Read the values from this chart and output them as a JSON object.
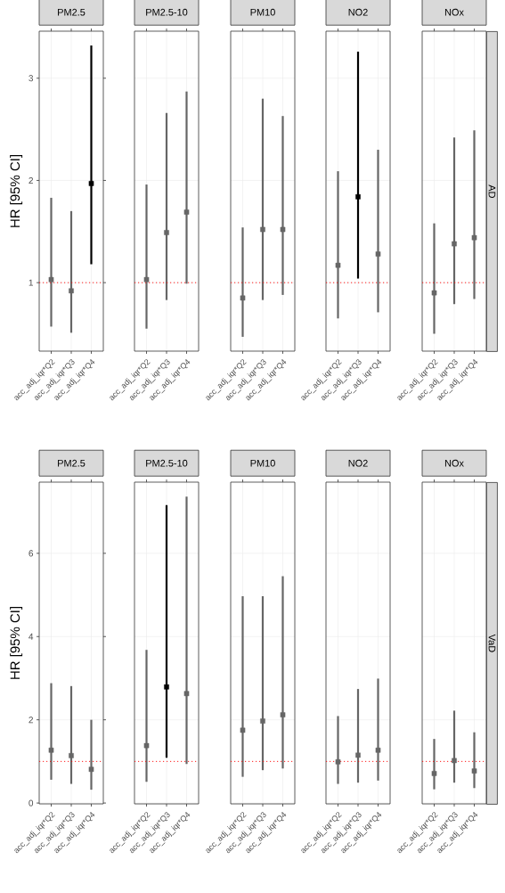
{
  "chart_data": [
    {
      "type": "scatter",
      "title": "PM2.5",
      "ylabel": "HR [95% CI]",
      "categories": [
        "acc_adj_iqr*Q2",
        "acc_adj_iqr*Q3",
        "acc_adj_iqr*Q4"
      ],
      "values": [
        1.03,
        0.92,
        1.97
      ],
      "errors": [
        [
          0.57,
          1.83
        ],
        [
          0.51,
          1.7
        ],
        [
          1.18,
          3.32
        ]
      ],
      "colors": [
        "#666666",
        "#666666",
        "#000000"
      ],
      "ylim": [
        0.33,
        3.46
      ],
      "yticks": [
        1,
        2,
        3
      ],
      "grid": true,
      "marker": "square",
      "ref_lines": [
        {
          "axis": "y",
          "value": 1,
          "color": "#ff0000",
          "line_style": "dotted"
        }
      ]
    },
    {
      "type": "scatter",
      "title": "PM2.5-10",
      "categories": [
        "acc_adj_iqr*Q2",
        "acc_adj_iqr*Q3",
        "acc_adj_iqr*Q4"
      ],
      "values": [
        1.03,
        1.49,
        1.69
      ],
      "errors": [
        [
          0.55,
          1.96
        ],
        [
          0.83,
          2.66
        ],
        [
          0.99,
          2.87
        ]
      ],
      "colors": [
        "#666666",
        "#666666",
        "#666666"
      ],
      "ylim": [
        0.33,
        3.46
      ],
      "yticks": [
        1,
        2,
        3
      ],
      "grid": true,
      "marker": "square",
      "tick_labels": "x",
      "ref_lines": [
        {
          "axis": "y",
          "value": 1,
          "color": "#ff0000",
          "line_style": "dotted"
        }
      ]
    },
    {
      "type": "scatter",
      "title": "PM10",
      "categories": [
        "acc_adj_iqr*Q2",
        "acc_adj_iqr*Q3",
        "acc_adj_iqr*Q4"
      ],
      "values": [
        0.85,
        1.52,
        1.52
      ],
      "errors": [
        [
          0.47,
          1.54
        ],
        [
          0.83,
          2.8
        ],
        [
          0.88,
          2.63
        ]
      ],
      "colors": [
        "#666666",
        "#666666",
        "#666666"
      ],
      "ylim": [
        0.33,
        3.46
      ],
      "yticks": [
        1,
        2,
        3
      ],
      "grid": true,
      "marker": "square",
      "tick_labels": "x",
      "ref_lines": [
        {
          "axis": "y",
          "value": 1,
          "color": "#ff0000",
          "line_style": "dotted"
        }
      ]
    },
    {
      "type": "scatter",
      "title": "NO2",
      "categories": [
        "acc_adj_iqr*Q2",
        "acc_adj_iqr*Q3",
        "acc_adj_iqr*Q4"
      ],
      "values": [
        1.17,
        1.84,
        1.28
      ],
      "errors": [
        [
          0.65,
          2.09
        ],
        [
          1.04,
          3.26
        ],
        [
          0.71,
          2.3
        ]
      ],
      "colors": [
        "#666666",
        "#000000",
        "#666666"
      ],
      "ylim": [
        0.33,
        3.46
      ],
      "yticks": [
        1,
        2,
        3
      ],
      "grid": true,
      "marker": "square",
      "tick_labels": "x",
      "ref_lines": [
        {
          "axis": "y",
          "value": 1,
          "color": "#ff0000",
          "line_style": "dotted"
        }
      ]
    },
    {
      "type": "scatter",
      "title": "NOx",
      "categories": [
        "acc_adj_iqr*Q2",
        "acc_adj_iqr*Q3",
        "acc_adj_iqr*Q4"
      ],
      "values": [
        0.9,
        1.38,
        1.44
      ],
      "errors": [
        [
          0.5,
          1.58
        ],
        [
          0.79,
          2.42
        ],
        [
          0.84,
          2.49
        ]
      ],
      "colors": [
        "#666666",
        "#666666",
        "#666666"
      ],
      "ylim": [
        0.33,
        3.46
      ],
      "yticks": [
        1,
        2,
        3
      ],
      "grid": true,
      "marker": "square",
      "tick_labels": "x",
      "annotations": [
        "AD"
      ],
      "ref_lines": [
        {
          "axis": "y",
          "value": 1,
          "color": "#ff0000",
          "line_style": "dotted"
        }
      ]
    },
    {
      "type": "scatter",
      "title": "PM2.5",
      "ylabel": "HR [95% CI]",
      "categories": [
        "acc_adj_iqr*Q2",
        "acc_adj_iqr*Q3",
        "acc_adj_iqr*Q4"
      ],
      "values": [
        1.27,
        1.14,
        0.81
      ],
      "errors": [
        [
          0.56,
          2.88
        ],
        [
          0.46,
          2.81
        ],
        [
          0.32,
          2.0
        ]
      ],
      "colors": [
        "#666666",
        "#666666",
        "#666666"
      ],
      "ylim": [
        -0.02,
        7.71
      ],
      "yticks": [
        0,
        2,
        4,
        6
      ],
      "grid": true,
      "marker": "square",
      "ref_lines": [
        {
          "axis": "y",
          "value": 1,
          "color": "#ff0000",
          "line_style": "dotted"
        }
      ]
    },
    {
      "type": "scatter",
      "title": "PM2.5-10",
      "categories": [
        "acc_adj_iqr*Q2",
        "acc_adj_iqr*Q3",
        "acc_adj_iqr*Q4"
      ],
      "values": [
        1.38,
        2.79,
        2.63
      ],
      "errors": [
        [
          0.51,
          3.68
        ],
        [
          1.09,
          7.16
        ],
        [
          0.94,
          7.36
        ]
      ],
      "colors": [
        "#666666",
        "#000000",
        "#666666"
      ],
      "ylim": [
        -0.02,
        7.71
      ],
      "yticks": [
        0,
        2,
        4,
        6
      ],
      "grid": true,
      "marker": "square",
      "tick_labels": "x",
      "ref_lines": [
        {
          "axis": "y",
          "value": 1,
          "color": "#ff0000",
          "line_style": "dotted"
        }
      ]
    },
    {
      "type": "scatter",
      "title": "PM10",
      "categories": [
        "acc_adj_iqr*Q2",
        "acc_adj_iqr*Q3",
        "acc_adj_iqr*Q4"
      ],
      "values": [
        1.75,
        1.97,
        2.12
      ],
      "errors": [
        [
          0.63,
          4.97
        ],
        [
          0.79,
          4.97
        ],
        [
          0.83,
          5.45
        ]
      ],
      "colors": [
        "#666666",
        "#666666",
        "#666666"
      ],
      "ylim": [
        -0.02,
        7.71
      ],
      "yticks": [
        0,
        2,
        4,
        6
      ],
      "grid": true,
      "marker": "square",
      "tick_labels": "x",
      "ref_lines": [
        {
          "axis": "y",
          "value": 1,
          "color": "#ff0000",
          "line_style": "dotted"
        }
      ]
    },
    {
      "type": "scatter",
      "title": "NO2",
      "categories": [
        "acc_adj_iqr*Q2",
        "acc_adj_iqr*Q3",
        "acc_adj_iqr*Q4"
      ],
      "values": [
        0.99,
        1.15,
        1.27
      ],
      "errors": [
        [
          0.46,
          2.09
        ],
        [
          0.49,
          2.74
        ],
        [
          0.54,
          2.99
        ]
      ],
      "colors": [
        "#666666",
        "#666666",
        "#666666"
      ],
      "ylim": [
        -0.02,
        7.71
      ],
      "yticks": [
        0,
        2,
        4,
        6
      ],
      "grid": true,
      "marker": "square",
      "tick_labels": "x",
      "ref_lines": [
        {
          "axis": "y",
          "value": 1,
          "color": "#ff0000",
          "line_style": "dotted"
        }
      ]
    },
    {
      "type": "scatter",
      "title": "NOx",
      "categories": [
        "acc_adj_iqr*Q2",
        "acc_adj_iqr*Q3",
        "acc_adj_iqr*Q4"
      ],
      "values": [
        0.71,
        1.02,
        0.77
      ],
      "errors": [
        [
          0.33,
          1.54
        ],
        [
          0.49,
          2.22
        ],
        [
          0.36,
          1.7
        ]
      ],
      "colors": [
        "#666666",
        "#666666",
        "#666666"
      ],
      "ylim": [
        -0.02,
        7.71
      ],
      "yticks": [
        0,
        2,
        4,
        6
      ],
      "grid": true,
      "marker": "square",
      "tick_labels": "x",
      "annotations": [
        "VaD"
      ],
      "ref_lines": [
        {
          "axis": "y",
          "value": 1,
          "color": "#ff0000",
          "line_style": "dotted"
        }
      ]
    }
  ]
}
